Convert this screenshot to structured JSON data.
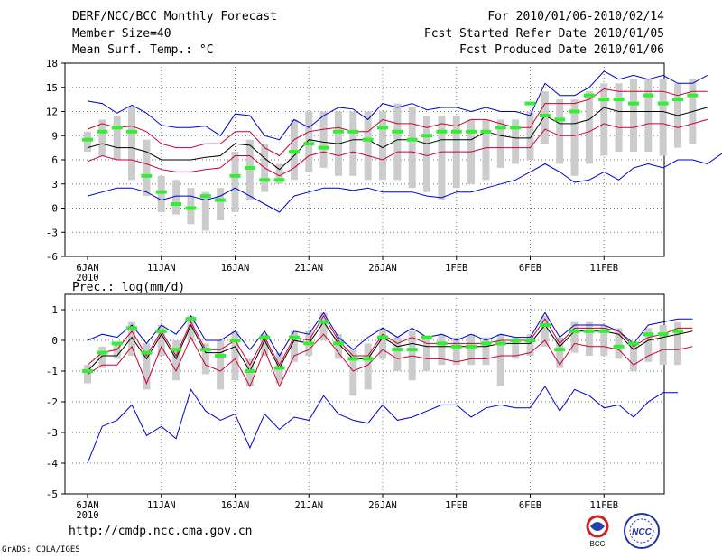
{
  "header": {
    "title": "DERF/NCC/BCC Monthly Forecast",
    "member_size": "Member Size=40",
    "variable": "Mean Surf. Temp.: °C",
    "period": "For 2010/01/06-2010/02/14",
    "fcst_started": "Fcst Started Refer Date 2010/01/05",
    "fcst_produced": "Fcst Produced Date 2010/01/06"
  },
  "footer": {
    "url": "http://cmdp.ncc.cma.gov.cn",
    "grads": "GrADS: COLA/IGES",
    "logo_bcc": "BCC",
    "logo_ncc": "NCC"
  },
  "colors": {
    "envelope": "#0000cc",
    "spread": "#cc0033",
    "mean": "#000000",
    "box": "#cccccc",
    "bar": "#33ee33"
  },
  "chart_data": [
    {
      "type": "line",
      "title": "Mean Surf. Temp.: °C",
      "ylim": [
        -6,
        18
      ],
      "yticks": [
        -6,
        -3,
        0,
        3,
        6,
        9,
        12,
        15,
        18
      ],
      "yticklabels": [
        "-6",
        "-3",
        "0",
        "3",
        "6",
        "9",
        "12",
        "15",
        "18"
      ],
      "xticks": [
        0,
        5,
        10,
        15,
        20,
        25,
        30,
        35
      ],
      "xticklabels": [
        "6JAN",
        "11JAN",
        "16JAN",
        "21JAN",
        "26JAN",
        "1FEB",
        "6FEB",
        "11FEB"
      ],
      "year_label": "2010",
      "days": 40,
      "series": [
        {
          "name": "max",
          "values": [
            13.3,
            13,
            11.8,
            12.8,
            11.8,
            10.3,
            10,
            10,
            10.2,
            9,
            11.7,
            11.5,
            9,
            8.5,
            11,
            10,
            11.5,
            12.5,
            12.3,
            11,
            13,
            12.5,
            13,
            12.2,
            12.5,
            12.5,
            12,
            12.5,
            12,
            12,
            11.5,
            15.5,
            14,
            14,
            15,
            17,
            16,
            16.5,
            16,
            16.5,
            15.5,
            15.5,
            16.5
          ]
        },
        {
          "name": "upper",
          "values": [
            9.8,
            10.5,
            10,
            10.2,
            9.5,
            8,
            7.5,
            7.5,
            8,
            8,
            9.5,
            9.5,
            7.5,
            6.5,
            8.5,
            9.5,
            9.8,
            10,
            9.5,
            9.5,
            11,
            10.5,
            10.5,
            10,
            10.5,
            10.2,
            11,
            11,
            10.5,
            10,
            10,
            13,
            13,
            13,
            13.5,
            14.8,
            14.5,
            14.5,
            14.5,
            14.5,
            14,
            14.5,
            14.5
          ]
        },
        {
          "name": "mean",
          "values": [
            7.5,
            8,
            7.5,
            7.5,
            7,
            6,
            6,
            6,
            6.3,
            6.5,
            8,
            7.8,
            6.2,
            4.8,
            6.5,
            8.5,
            8.2,
            8,
            8.5,
            8.5,
            7.5,
            8.5,
            8.5,
            8,
            8.5,
            8.5,
            8.5,
            9.5,
            9,
            8.7,
            8.7,
            11.5,
            10.5,
            10.5,
            11,
            12.5,
            12,
            12,
            12,
            12,
            11.5,
            12,
            12.5
          ]
        },
        {
          "name": "lower",
          "values": [
            5.8,
            6.5,
            6,
            6,
            5.5,
            4.8,
            4.5,
            4.5,
            4.8,
            5,
            6.5,
            6.5,
            5,
            4,
            5,
            6.5,
            7,
            6.5,
            7,
            6.5,
            6,
            7,
            7,
            6.5,
            7,
            7,
            7,
            7.5,
            7.5,
            7.5,
            7.5,
            9.8,
            9,
            9,
            9.5,
            10.5,
            10,
            10,
            10.5,
            10.5,
            10,
            10.5,
            11
          ]
        },
        {
          "name": "min",
          "values": [
            1.5,
            2,
            2.5,
            2.5,
            2,
            1,
            1.5,
            1.5,
            1,
            1.5,
            2.5,
            1.5,
            0.5,
            -0.5,
            1.5,
            2,
            2.5,
            2.5,
            2.2,
            2.5,
            2,
            2,
            2,
            1.5,
            1.3,
            2,
            2,
            2.5,
            3,
            3.5,
            4.5,
            5.5,
            4.5,
            3.2,
            3.5,
            4.5,
            3.5,
            5,
            5.5,
            5,
            6,
            6,
            5.5,
            6.8
          ]
        },
        {
          "name": "range_low",
          "values": [
            7,
            6.5,
            6,
            3.5,
            1.5,
            -0.5,
            -0.8,
            -2,
            -2.8,
            -1.5,
            -0.5,
            1,
            2,
            3,
            3.5,
            4.5,
            5,
            4,
            4,
            3.5,
            3.5,
            3.5,
            2.5,
            2,
            1,
            2.5,
            3,
            3.5,
            5,
            5.5,
            6,
            8,
            5.5,
            4,
            5.5,
            6.5,
            7,
            7,
            7,
            6.5,
            7.5,
            8
          ]
        },
        {
          "name": "range_high",
          "values": [
            9.5,
            11,
            11.5,
            12.5,
            8.5,
            4,
            3.5,
            2.5,
            2,
            2.5,
            7,
            8.5,
            8,
            5.5,
            11,
            12,
            12,
            12,
            12,
            12,
            12,
            13,
            12.5,
            11.5,
            11.5,
            11.5,
            11,
            11,
            11,
            11,
            12,
            14.5,
            13.5,
            13.5,
            14.5,
            15.5,
            15.5,
            16,
            16,
            16,
            15.5,
            16
          ]
        },
        {
          "name": "observed",
          "values": [
            8.5,
            9.5,
            10,
            9.5,
            4,
            2,
            0.5,
            0,
            1.5,
            1,
            4,
            5,
            3.5,
            3.5,
            7,
            8,
            7.5,
            9.5,
            9.5,
            8.5,
            10,
            9.5,
            8.5,
            9,
            9.5,
            9.5,
            9.5,
            9.5,
            10,
            10,
            13,
            11.5,
            11,
            12,
            14,
            13.5,
            13.5,
            13,
            14,
            13,
            13.5,
            14
          ]
        }
      ]
    },
    {
      "type": "line",
      "title": "Prec.: log(mm/d)",
      "ylim": [
        -5,
        1.5
      ],
      "yticks": [
        -5,
        -4,
        -3,
        -2,
        -1,
        0,
        1
      ],
      "yticklabels": [
        "-5",
        "-4",
        "-3",
        "-2",
        "-1",
        "0",
        "1"
      ],
      "xticks": [
        0,
        5,
        10,
        15,
        20,
        25,
        30,
        35
      ],
      "xticklabels": [
        "6JAN",
        "11JAN",
        "16JAN",
        "21JAN",
        "26JAN",
        "1FEB",
        "6FEB",
        "11FEB"
      ],
      "year_label": "2010",
      "days": 40,
      "series": [
        {
          "name": "max",
          "values": [
            0,
            0.2,
            0.1,
            0.5,
            -0.1,
            0.5,
            0.2,
            0.8,
            0,
            0,
            0.3,
            -0.3,
            0.3,
            -0.5,
            0.3,
            0.2,
            0.9,
            0.1,
            -0.3,
            0.1,
            0.4,
            0.1,
            0.4,
            0.1,
            0.2,
            0,
            0.2,
            0,
            0.2,
            0.1,
            0.1,
            0.9,
            0.1,
            0.5,
            0.5,
            0.5,
            0.3,
            -0.1,
            0.5,
            0.6,
            0.7,
            0.7
          ]
        },
        {
          "name": "upper",
          "values": [
            -0.8,
            -0.4,
            -0.3,
            0.3,
            -0.5,
            0.3,
            -0.5,
            0.6,
            -0.3,
            -0.3,
            0,
            -0.8,
            0.1,
            -0.8,
            0.1,
            0,
            0.8,
            0,
            -0.5,
            -0.5,
            0.2,
            -0.1,
            0.1,
            -0.1,
            -0.1,
            -0.1,
            -0.1,
            -0.1,
            0,
            0,
            0,
            0.7,
            -0.1,
            0.4,
            0.4,
            0.4,
            0.3,
            -0.2,
            0.1,
            0.2,
            0.4,
            0.4
          ]
        },
        {
          "name": "mean",
          "values": [
            -1,
            -0.5,
            -0.5,
            0.1,
            -0.6,
            0.2,
            -0.6,
            0.5,
            -0.4,
            -0.4,
            -0.2,
            -1,
            0,
            -0.9,
            0,
            -0.1,
            0.6,
            -0.1,
            -0.6,
            -0.6,
            0.1,
            -0.2,
            -0.1,
            -0.2,
            -0.2,
            -0.2,
            -0.2,
            -0.2,
            -0.1,
            -0.1,
            -0.1,
            0.5,
            -0.2,
            0.3,
            0.3,
            0.3,
            0.2,
            -0.3,
            0,
            0.1,
            0.2,
            0.3
          ]
        },
        {
          "name": "lower",
          "values": [
            -1.1,
            -0.8,
            -0.8,
            -0.2,
            -1.4,
            -0.2,
            -1,
            0.1,
            -0.8,
            -1,
            -0.6,
            -1.5,
            -0.3,
            -1.5,
            -0.5,
            -0.3,
            0.2,
            -0.4,
            -1,
            -0.8,
            -0.3,
            -0.6,
            -0.5,
            -0.6,
            -0.6,
            -0.7,
            -0.6,
            -0.6,
            -0.5,
            -0.5,
            -0.4,
            0,
            -0.8,
            -0.1,
            -0.2,
            -0.2,
            -0.3,
            -0.8,
            -0.5,
            -0.3,
            -0.3,
            -0.2
          ]
        },
        {
          "name": "min",
          "values": [
            -4,
            -2.8,
            -2.6,
            -2.1,
            -3.1,
            -2.8,
            -3.2,
            -1.6,
            -2.3,
            -2.6,
            -2.4,
            -3.5,
            -2.4,
            -2.9,
            -2.5,
            -2.6,
            -1.8,
            -2.4,
            -2.6,
            -2.7,
            -2.1,
            -2.6,
            -2.5,
            -2.3,
            -2.1,
            -2.1,
            -2.5,
            -2.2,
            -2.1,
            -2.2,
            -2.2,
            -1.5,
            -2.3,
            -1.6,
            -1.8,
            -2.2,
            -2.1,
            -2.5,
            -2,
            -1.7,
            -1.7
          ]
        },
        {
          "name": "range_low",
          "values": [
            -1.4,
            -0.9,
            -0.6,
            -0.5,
            -1.6,
            -0.5,
            -1.3,
            0,
            -1.1,
            -1.6,
            -1.3,
            -1.5,
            -0.5,
            -1.4,
            -0.7,
            -0.5,
            0,
            -0.6,
            -1.8,
            -1.6,
            -0.6,
            -1,
            -1.3,
            -1,
            -0.8,
            -0.8,
            -0.8,
            -0.8,
            -1.5,
            -0.6,
            -0.5,
            -0.2,
            -0.9,
            -0.4,
            -0.5,
            -0.5,
            -0.6,
            -1,
            -0.7,
            -0.8,
            -0.8
          ]
        },
        {
          "name": "range_high",
          "values": [
            -0.8,
            -0.2,
            -0.1,
            0.6,
            -0.1,
            0.5,
            0,
            0.8,
            -0.1,
            0,
            0.3,
            -0.6,
            0.2,
            -0.4,
            0.3,
            0.3,
            0.9,
            0.2,
            -0.3,
            -0.1,
            0.4,
            0.1,
            0.3,
            0.1,
            0.2,
            0.1,
            0.2,
            0.1,
            0.2,
            0.1,
            0.2,
            0.8,
            0.1,
            0.6,
            0.6,
            0.5,
            0.4,
            -0.1,
            0.4,
            0.5,
            0.6
          ]
        },
        {
          "name": "observed",
          "values": [
            -1,
            -0.4,
            -0.1,
            0.4,
            -0.4,
            0.3,
            -0.3,
            0.7,
            -0.3,
            -0.5,
            0,
            -1,
            0.1,
            -0.9,
            0.1,
            -0.1,
            0.6,
            -0.1,
            -0.6,
            -0.6,
            0.1,
            -0.3,
            -0.3,
            0.1,
            -0.1,
            -0.2,
            -0.2,
            -0.1,
            -0.1,
            0,
            0,
            0.5,
            -0.3,
            0.3,
            0.3,
            0.3,
            -0.2,
            -0.1,
            0.2,
            0.2,
            0.3
          ]
        }
      ]
    }
  ]
}
